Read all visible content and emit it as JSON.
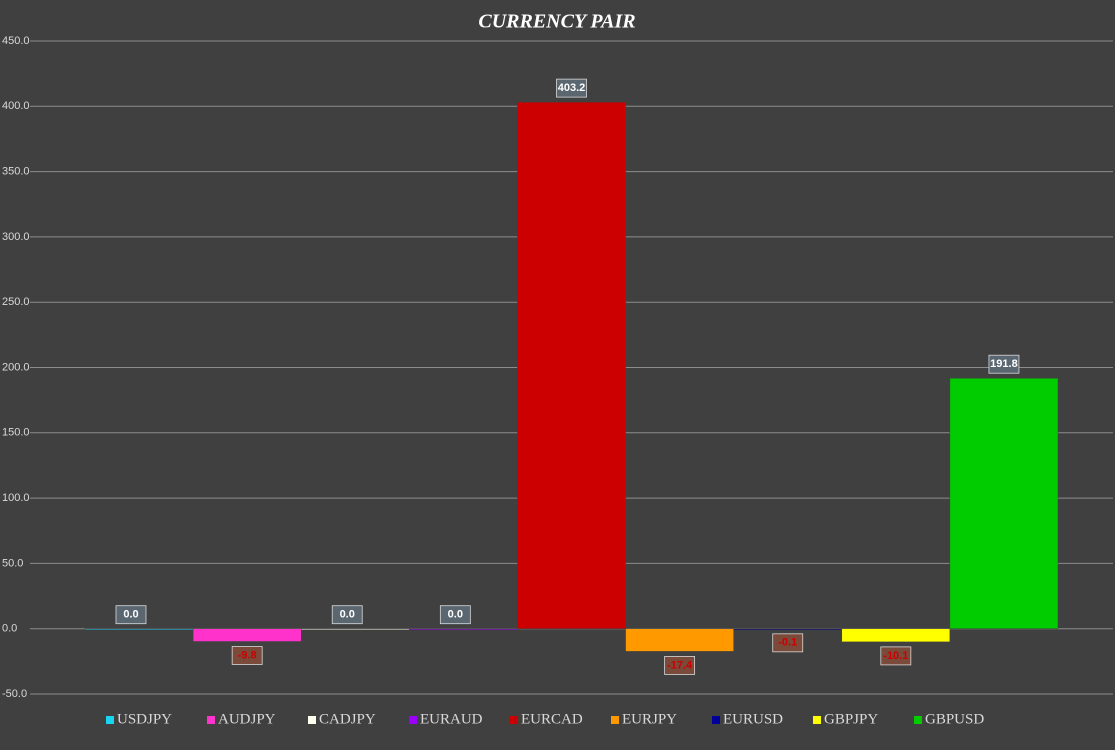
{
  "chart_data": {
    "type": "bar",
    "title": "CURRENCY PAIR",
    "ylim": [
      -50,
      450
    ],
    "yticks": [
      {
        "value": -50,
        "label": "-50.0"
      },
      {
        "value": 0,
        "label": "0.0"
      },
      {
        "value": 50,
        "label": "50.0"
      },
      {
        "value": 100,
        "label": "100.0"
      },
      {
        "value": 150,
        "label": "150.0"
      },
      {
        "value": 200,
        "label": "200.0"
      },
      {
        "value": 250,
        "label": "250.0"
      },
      {
        "value": 300,
        "label": "300.0"
      },
      {
        "value": 350,
        "label": "350.0"
      },
      {
        "value": 400,
        "label": "400.0"
      },
      {
        "value": 450,
        "label": "450.0"
      }
    ],
    "grid": true,
    "legend": "bottom",
    "series": [
      {
        "name": "USDJPY",
        "color": "#17d7f0",
        "values": [
          0
        ],
        "value_labels": [
          "0.0"
        ]
      },
      {
        "name": "AUDJPY",
        "color": "#ff33cc",
        "values": [
          -9.8
        ],
        "value_labels": [
          "-9.8"
        ]
      },
      {
        "name": "CADJPY",
        "color": "#fffff0",
        "values": [
          0
        ],
        "value_labels": [
          "0.0"
        ]
      },
      {
        "name": "EURAUD",
        "color": "#9900ff",
        "values": [
          0
        ],
        "value_labels": [
          "0.0"
        ]
      },
      {
        "name": "EURCAD",
        "color": "#cc0000",
        "values": [
          403.2
        ],
        "value_labels": [
          "403.2"
        ]
      },
      {
        "name": "EURJPY",
        "color": "#ff9900",
        "values": [
          -17.4
        ],
        "value_labels": [
          "-17.4"
        ]
      },
      {
        "name": "EURUSD",
        "color": "#000099",
        "values": [
          -0.1
        ],
        "value_labels": [
          "-0.1"
        ]
      },
      {
        "name": "GBPJPY",
        "color": "#ffff00",
        "values": [
          -10.1
        ],
        "value_labels": [
          "-10.1"
        ]
      },
      {
        "name": "GBPUSD",
        "color": "#00cc00",
        "values": [
          191.8
        ],
        "value_labels": [
          "191.8"
        ]
      }
    ]
  }
}
